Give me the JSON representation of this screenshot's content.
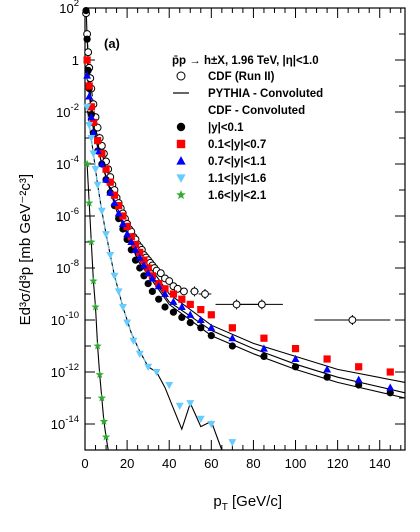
{
  "chart_data": {
    "type": "scatter",
    "panel_label": "(a)",
    "process_label": "p̄p → h±X, 1.96 TeV, |η|<1.0",
    "xlabel_main": "p",
    "xlabel_sub": "T",
    "xlabel_unit": " [GeV/c]",
    "ylabel": "Ed³σ/d³p [mb GeV⁻²c³]",
    "xlim": [
      0,
      152
    ],
    "ylim_log10": [
      -15,
      2
    ],
    "log_y": true,
    "grid": false,
    "legend_position": "top-right",
    "x_ticks": [
      "0",
      "20",
      "40",
      "60",
      "80",
      "100",
      "120",
      "140"
    ],
    "y_ticks": [
      {
        "label": "10",
        "exp": "2",
        "value": 2
      },
      {
        "label": "1",
        "exp": "",
        "value": 0
      },
      {
        "label": "10",
        "exp": "-2",
        "value": -2
      },
      {
        "label": "10",
        "exp": "-4",
        "value": -4
      },
      {
        "label": "10",
        "exp": "-6",
        "value": -6
      },
      {
        "label": "10",
        "exp": "-8",
        "value": -8
      },
      {
        "label": "10",
        "exp": "-10",
        "value": -10
      },
      {
        "label": "10",
        "exp": "-12",
        "value": -12
      },
      {
        "label": "10",
        "exp": "-14",
        "value": -14
      }
    ],
    "legend": [
      {
        "label": "CDF (Run II)",
        "marker": "open-circle",
        "color": "#000000"
      },
      {
        "label": "PYTHIA - Convoluted",
        "marker": "line",
        "color": "#000000"
      },
      {
        "label": "CDF - Convoluted",
        "marker": "none",
        "color": "#000000"
      },
      {
        "label": "|y|<0.1",
        "marker": "circle",
        "color": "#000000"
      },
      {
        "label": "0.1<|y|<0.7",
        "marker": "square",
        "color": "#ff0000"
      },
      {
        "label": "0.7<|y|<1.1",
        "marker": "triangle-up",
        "color": "#0000ff"
      },
      {
        "label": "1.1<|y|<1.6",
        "marker": "triangle-down",
        "color": "#66ccff"
      },
      {
        "label": "1.6<|y|<2.1",
        "marker": "star",
        "color": "#33aa33"
      }
    ],
    "series": [
      {
        "name": "CDF (Run II)",
        "marker": "open-circle",
        "color": "#000000",
        "log10": true,
        "x": [
          0.5,
          1,
          1.5,
          2,
          2.5,
          3,
          4,
          5,
          6,
          7,
          8,
          9,
          10,
          11,
          12,
          13,
          14,
          15,
          16,
          17,
          18,
          19,
          20,
          21,
          22,
          23,
          24,
          25,
          26,
          27,
          28,
          29,
          30,
          31,
          32,
          33,
          34,
          36,
          38,
          40,
          42,
          44,
          47,
          52,
          57,
          72,
          84,
          127
        ],
        "y": [
          1.8,
          1.0,
          0.3,
          -0.3,
          -0.7,
          -1.1,
          -1.7,
          -2.2,
          -2.6,
          -3.0,
          -3.3,
          -3.6,
          -3.9,
          -4.2,
          -4.5,
          -4.8,
          -5.0,
          -5.3,
          -5.5,
          -5.7,
          -5.9,
          -6.1,
          -6.3,
          -6.5,
          -6.6,
          -6.8,
          -6.9,
          -7.1,
          -7.2,
          -7.3,
          -7.5,
          -7.6,
          -7.7,
          -7.8,
          -7.9,
          -8.0,
          -8.1,
          -8.2,
          -8.4,
          -8.5,
          -8.7,
          -8.8,
          -8.9,
          -8.9,
          -9.0,
          -9.4,
          -9.4,
          -10.0
        ],
        "x_err": [
          0,
          0,
          0,
          0,
          0,
          0,
          0,
          0,
          0,
          0,
          0,
          0,
          0,
          0,
          0,
          0,
          0,
          0,
          0,
          0,
          0,
          0,
          0,
          0,
          0,
          0,
          0,
          0,
          0,
          0,
          0,
          0,
          0,
          0,
          0,
          0,
          0,
          0,
          0,
          0,
          0,
          0,
          0,
          2,
          3,
          10,
          10,
          18
        ]
      },
      {
        "name": "|y|<0.1",
        "marker": "circle",
        "color": "#000000",
        "log10": true,
        "x": [
          0.5,
          1,
          1.5,
          2,
          3,
          4,
          6,
          8,
          10,
          12,
          14,
          16,
          18,
          20,
          22,
          24,
          26,
          28,
          30,
          32,
          35,
          38,
          42,
          46,
          50,
          55,
          60,
          70,
          85,
          100,
          115,
          130,
          145
        ],
        "y": [
          1.9,
          0.8,
          -0.4,
          -1.1,
          -2.1,
          -2.8,
          -3.5,
          -4.0,
          -4.6,
          -5.1,
          -5.6,
          -6.1,
          -6.5,
          -6.9,
          -7.3,
          -7.7,
          -8.0,
          -8.3,
          -8.6,
          -8.9,
          -9.2,
          -9.5,
          -9.7,
          -9.9,
          -10.1,
          -10.3,
          -10.6,
          -11.0,
          -11.4,
          -11.8,
          -12.2,
          -12.5,
          -12.8
        ]
      },
      {
        "name": "0.1<|y|<0.7",
        "marker": "square",
        "color": "#ff0000",
        "log10": true,
        "x": [
          1,
          2,
          3,
          4,
          6,
          8,
          10,
          12,
          14,
          16,
          18,
          20,
          22,
          24,
          26,
          28,
          30,
          32,
          35,
          38,
          42,
          46,
          50,
          55,
          60,
          70,
          85,
          100,
          115,
          130,
          145
        ],
        "y": [
          0.0,
          -1.0,
          -1.8,
          -2.4,
          -3.1,
          -3.6,
          -4.2,
          -4.7,
          -5.2,
          -5.6,
          -6.0,
          -6.4,
          -6.8,
          -7.1,
          -7.4,
          -7.7,
          -8.0,
          -8.3,
          -8.6,
          -8.8,
          -9.0,
          -9.2,
          -9.4,
          -9.6,
          -9.8,
          -10.3,
          -10.7,
          -11.1,
          -11.5,
          -11.8,
          -12.0
        ]
      },
      {
        "name": "0.7<|y|<1.1",
        "marker": "triangle-up",
        "color": "#0000ff",
        "log10": true,
        "x": [
          1,
          2,
          3,
          4,
          6,
          8,
          10,
          12,
          14,
          16,
          18,
          20,
          22,
          24,
          26,
          28,
          30,
          32,
          35,
          38,
          42,
          46,
          50,
          55,
          60,
          70,
          85,
          100,
          115,
          130,
          145
        ],
        "y": [
          -0.6,
          -1.4,
          -2.2,
          -2.8,
          -3.5,
          -4.0,
          -4.6,
          -5.1,
          -5.5,
          -5.9,
          -6.3,
          -6.7,
          -7.0,
          -7.3,
          -7.6,
          -7.9,
          -8.2,
          -8.4,
          -8.7,
          -9.0,
          -9.3,
          -9.5,
          -9.8,
          -10.0,
          -10.3,
          -10.7,
          -11.1,
          -11.5,
          -11.9,
          -12.3,
          -12.6
        ]
      },
      {
        "name": "1.1<|y|<1.6",
        "marker": "triangle-down",
        "color": "#66ccff",
        "log10": true,
        "x": [
          1,
          2,
          3,
          4,
          5,
          6,
          8,
          10,
          12,
          14,
          16,
          18,
          20,
          23,
          26,
          30,
          34,
          40,
          45,
          50,
          55,
          60,
          70
        ],
        "y": [
          -1.8,
          -2.5,
          -3.0,
          -3.6,
          -4.2,
          -4.8,
          -5.8,
          -6.7,
          -7.5,
          -8.3,
          -8.9,
          -9.5,
          -10.1,
          -10.8,
          -11.3,
          -11.8,
          -12.0,
          -12.5,
          -13.3,
          -13.2,
          -13.8,
          -14.0,
          -14.7
        ]
      },
      {
        "name": "1.6<|y|<2.1",
        "marker": "star",
        "color": "#33aa33",
        "log10": true,
        "x": [
          1,
          2,
          3,
          4,
          5,
          6,
          7,
          8,
          9,
          10
        ],
        "y": [
          -4.0,
          -5.5,
          -7.0,
          -8.5,
          -9.5,
          -11.0,
          -12.1,
          -13.0,
          -13.9,
          -14.5
        ]
      }
    ],
    "curves": [
      {
        "name": "PYTHIA |y|<0.1",
        "color": "#000000",
        "style": "solid",
        "x": [
          0.5,
          1,
          2,
          4,
          8,
          15,
          25,
          40,
          60,
          80,
          100,
          120,
          152
        ],
        "y": [
          2.0,
          0.9,
          -1.0,
          -2.6,
          -4.0,
          -5.6,
          -7.7,
          -9.4,
          -10.6,
          -11.3,
          -11.9,
          -12.4,
          -13.0
        ]
      },
      {
        "name": "PYTHIA 0.1<|y|<0.7",
        "color": "#000000",
        "style": "solid",
        "x": [
          1,
          2,
          4,
          8,
          15,
          25,
          40,
          60,
          80,
          100,
          120,
          152
        ],
        "y": [
          0.1,
          -0.9,
          -2.3,
          -3.6,
          -5.4,
          -7.3,
          -9.0,
          -10.2,
          -10.9,
          -11.4,
          -11.9,
          -12.4
        ]
      },
      {
        "name": "PYTHIA 0.7<|y|<1.1",
        "color": "#000000",
        "style": "solid",
        "x": [
          1,
          2,
          4,
          8,
          15,
          25,
          40,
          60,
          80,
          100,
          120,
          152
        ],
        "y": [
          -0.5,
          -1.3,
          -2.7,
          -4.0,
          -5.8,
          -7.6,
          -9.3,
          -10.4,
          -11.1,
          -11.7,
          -12.2,
          -12.8
        ]
      },
      {
        "name": "PYTHIA 1.1<|y|<1.6",
        "color": "#000000",
        "style": "solid",
        "x": [
          1,
          2,
          4,
          6,
          8,
          10,
          14,
          18,
          22,
          26,
          30,
          34,
          38,
          42,
          46,
          50,
          55,
          60,
          65
        ],
        "y": [
          -1.8,
          -2.5,
          -3.6,
          -4.8,
          -5.8,
          -6.7,
          -8.3,
          -9.5,
          -10.5,
          -11.2,
          -11.8,
          -12.0,
          -12.6,
          -13.4,
          -14.2,
          -13.2,
          -14.1,
          -13.9,
          -15.0
        ]
      },
      {
        "name": "PYTHIA 1.6<|y|<2.1",
        "color": "#000000",
        "style": "solid",
        "x": [
          1,
          2,
          3,
          4,
          5,
          6,
          7,
          8,
          9,
          10,
          11
        ],
        "y": [
          -4.0,
          -5.5,
          -7.0,
          -8.5,
          -9.5,
          -11.0,
          -12.1,
          -13.0,
          -13.9,
          -14.5,
          -15.0
        ]
      },
      {
        "name": "CDF (Run II) fit",
        "color": "#000000",
        "style": "dashed",
        "x": [
          1,
          2,
          3,
          4,
          6,
          8,
          10,
          12,
          14,
          16,
          18,
          20
        ],
        "y": [
          0.9,
          -0.3,
          -1.1,
          -1.7,
          -2.6,
          -3.3,
          -3.9,
          -4.5,
          -5.0,
          -5.5,
          -5.9,
          -6.3
        ]
      },
      {
        "name": "1.1<|y|<1.6 dashed",
        "color": "#66ccff",
        "style": "dashed",
        "x": [
          1,
          2,
          4,
          6,
          8,
          10,
          14,
          18,
          22,
          26,
          30
        ],
        "y": [
          -1.8,
          -2.5,
          -3.6,
          -4.8,
          -5.8,
          -6.7,
          -8.3,
          -9.5,
          -10.5,
          -11.2,
          -11.8
        ]
      }
    ]
  }
}
